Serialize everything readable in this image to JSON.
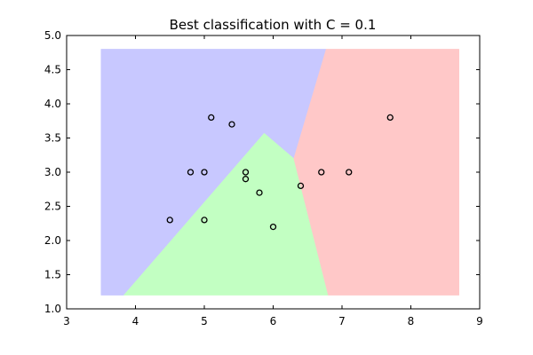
{
  "chart_data": {
    "type": "scatter",
    "title": "Best classification with C = 0.1",
    "xlabel": "",
    "ylabel": "",
    "xlim": [
      3,
      9
    ],
    "ylim": [
      1.0,
      5.0
    ],
    "x_ticks": [
      "3",
      "4",
      "5",
      "6",
      "7",
      "8",
      "9"
    ],
    "y_ticks": [
      "1.0",
      "1.5",
      "2.0",
      "2.5",
      "3.0",
      "3.5",
      "4.0",
      "4.5",
      "5.0"
    ],
    "grid": false,
    "decision_region_extent": {
      "x": [
        3.5,
        8.7
      ],
      "y": [
        1.2,
        4.8
      ]
    },
    "regions": [
      {
        "class": "blue",
        "color": "#c8c8ff",
        "polygon": [
          [
            3.5,
            1.2
          ],
          [
            3.83,
            1.2
          ],
          [
            5.87,
            3.57
          ],
          [
            6.3,
            3.2
          ],
          [
            6.77,
            4.8
          ],
          [
            3.5,
            4.8
          ]
        ]
      },
      {
        "class": "green",
        "color": "#c2ffc2",
        "polygon": [
          [
            3.83,
            1.2
          ],
          [
            6.8,
            1.2
          ],
          [
            6.3,
            3.2
          ],
          [
            5.87,
            3.57
          ]
        ]
      },
      {
        "class": "red",
        "color": "#ffc8c8",
        "polygon": [
          [
            6.8,
            1.2
          ],
          [
            8.7,
            1.2
          ],
          [
            8.7,
            4.8
          ],
          [
            6.77,
            4.8
          ],
          [
            6.3,
            3.2
          ]
        ]
      }
    ],
    "points": [
      {
        "x": 4.5,
        "y": 2.3
      },
      {
        "x": 4.8,
        "y": 3.0
      },
      {
        "x": 5.0,
        "y": 3.0
      },
      {
        "x": 5.0,
        "y": 2.3
      },
      {
        "x": 5.1,
        "y": 3.8
      },
      {
        "x": 5.4,
        "y": 3.7
      },
      {
        "x": 5.6,
        "y": 3.0
      },
      {
        "x": 5.6,
        "y": 2.9
      },
      {
        "x": 5.8,
        "y": 2.7
      },
      {
        "x": 6.0,
        "y": 2.2
      },
      {
        "x": 6.4,
        "y": 2.8
      },
      {
        "x": 6.7,
        "y": 3.0
      },
      {
        "x": 7.1,
        "y": 3.0
      },
      {
        "x": 7.7,
        "y": 3.8
      }
    ],
    "marker": {
      "shape": "open-circle",
      "edge_color": "#000000"
    }
  }
}
